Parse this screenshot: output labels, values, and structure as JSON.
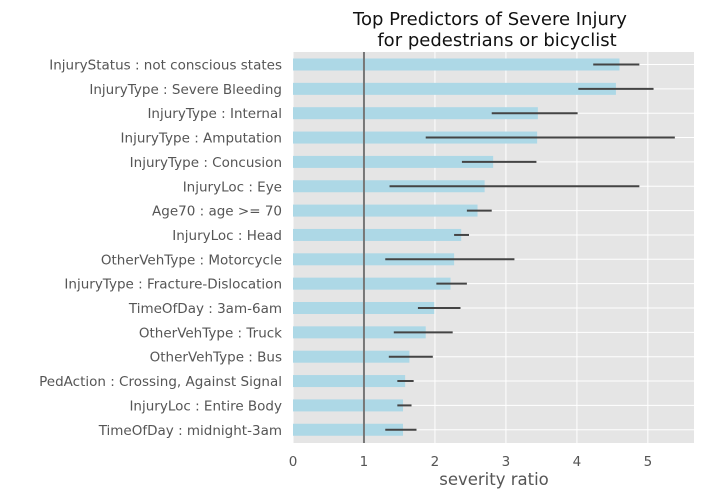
{
  "chart_data": {
    "type": "bar",
    "orientation": "horizontal",
    "title": [
      "Top Predictors of Severe Injury",
      "for pedestrians or bicyclist"
    ],
    "xlabel": "severity ratio",
    "ylabel": "",
    "xlim": [
      0,
      5.65
    ],
    "xticks": [
      0,
      1,
      2,
      3,
      4,
      5
    ],
    "reference_line": 1,
    "grid": true,
    "colors": {
      "background": "#e5e5e5",
      "grid": "#ffffff",
      "bar": "#add8e6",
      "error_bar": "#444444",
      "reference_line": "#777777"
    },
    "categories": [
      "InjuryStatus : not conscious states",
      "InjuryType : Severe Bleeding",
      "InjuryType : Internal",
      "InjuryType : Amputation",
      "InjuryType : Concusion",
      "InjuryLoc : Eye",
      "Age70 : age >= 70",
      "InjuryLoc : Head",
      "OtherVehType : Motorcycle",
      "InjuryType : Fracture-Dislocation",
      "TimeOfDay : 3am-6am",
      "OtherVehType : Truck",
      "OtherVehType : Bus",
      "PedAction : Crossing, Against Signal",
      "InjuryLoc : Entire Body",
      "TimeOfDay : midnight-3am"
    ],
    "values": [
      4.6,
      4.55,
      3.45,
      3.44,
      2.82,
      2.7,
      2.6,
      2.37,
      2.27,
      2.22,
      1.99,
      1.87,
      1.64,
      1.58,
      1.55,
      1.55
    ],
    "error_low": [
      4.23,
      4.02,
      2.8,
      1.87,
      2.38,
      1.36,
      2.45,
      2.27,
      1.3,
      2.02,
      1.76,
      1.42,
      1.35,
      1.47,
      1.47,
      1.3
    ],
    "error_high": [
      4.88,
      5.08,
      4.01,
      5.38,
      3.43,
      4.88,
      2.8,
      2.48,
      3.12,
      2.45,
      2.36,
      2.25,
      1.97,
      1.7,
      1.67,
      1.74
    ]
  }
}
